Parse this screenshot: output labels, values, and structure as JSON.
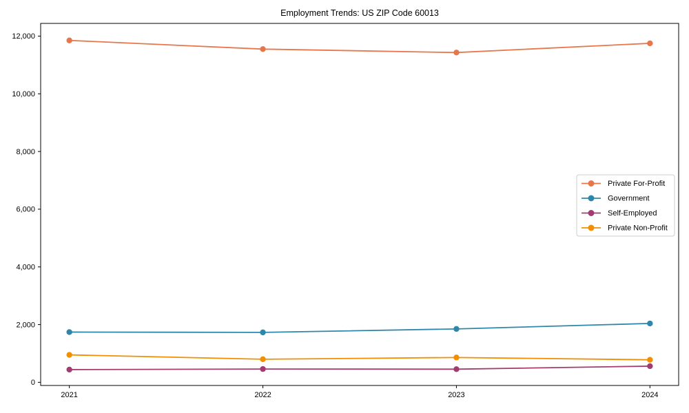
{
  "chart_data": {
    "type": "line",
    "title": "Employment Trends: US ZIP Code 60013",
    "xlabel": "",
    "ylabel": "",
    "x": [
      2021,
      2022,
      2023,
      2024
    ],
    "x_tick_labels": [
      "2021",
      "2022",
      "2023",
      "2024"
    ],
    "y_ticks": [
      0,
      2000,
      4000,
      6000,
      8000,
      10000,
      12000
    ],
    "y_tick_labels": [
      "0",
      "2,000",
      "4,000",
      "6,000",
      "8,000",
      "10,000",
      "12,000"
    ],
    "ylim": [
      -110,
      12440
    ],
    "grid": false,
    "legend_position": "center-right",
    "series": [
      {
        "name": "Private For-Profit",
        "color": "#E8764B",
        "values": [
          11850,
          11550,
          11430,
          11750
        ]
      },
      {
        "name": "Government",
        "color": "#2E86AB",
        "values": [
          1740,
          1730,
          1850,
          2040
        ]
      },
      {
        "name": "Self-Employed",
        "color": "#A23B72",
        "values": [
          440,
          460,
          455,
          560
        ]
      },
      {
        "name": "Private Non-Profit",
        "color": "#F18F01",
        "values": [
          950,
          800,
          860,
          780
        ]
      }
    ]
  }
}
